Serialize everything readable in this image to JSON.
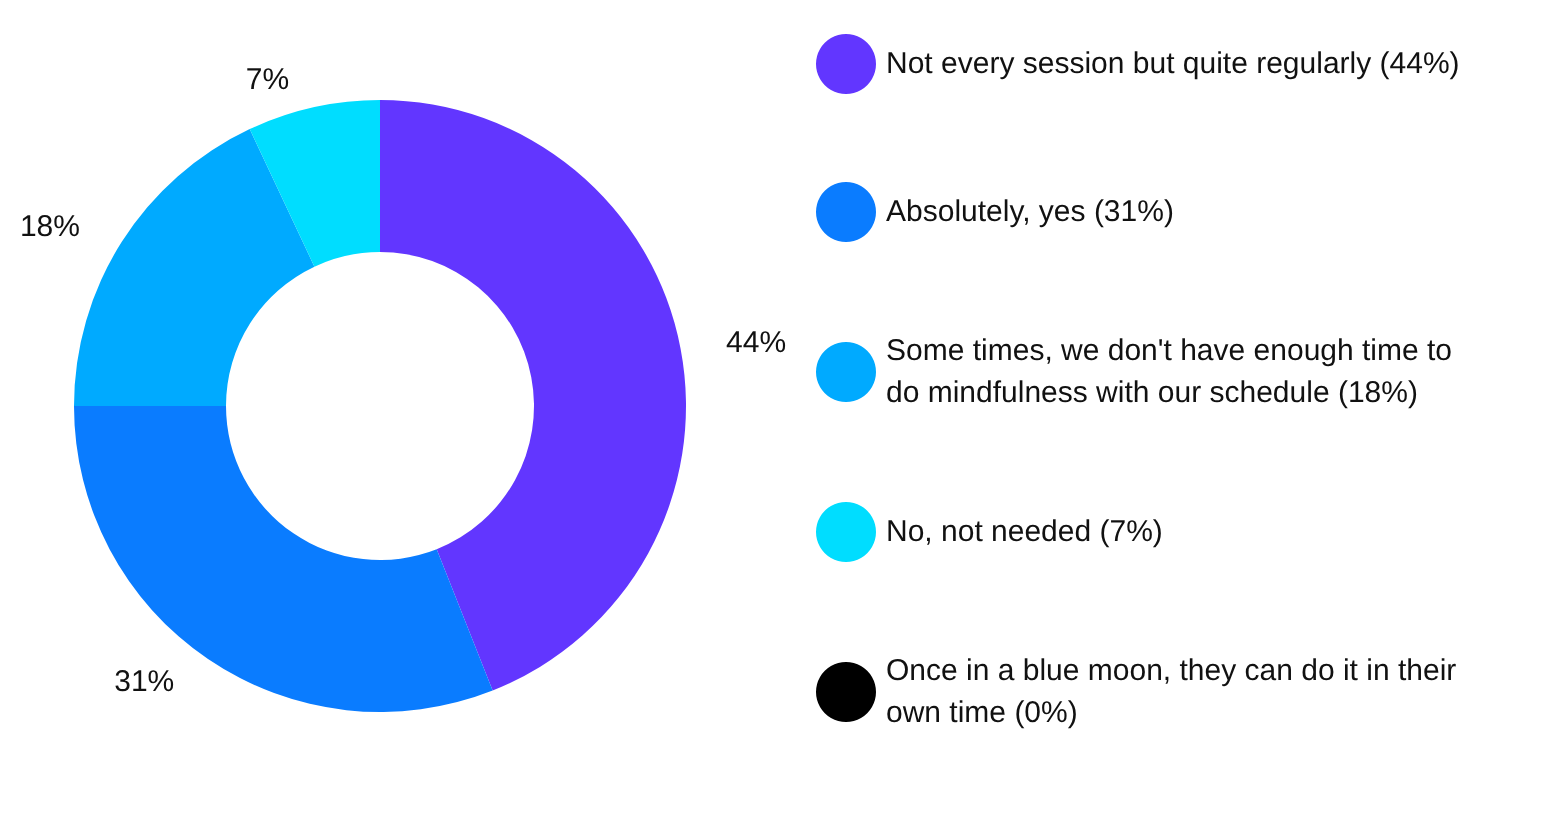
{
  "chart_data": {
    "type": "donut",
    "categories": [
      "Not every session but quite regularly (44%)",
      "Absolutely, yes (31%)",
      "Some times, we don't have enough time to do mindfulness with our schedule (18%)",
      "No, not needed (7%)",
      "Once in a blue moon, they can do it in their own time (0%)"
    ],
    "values": [
      44,
      31,
      18,
      7,
      0
    ],
    "colors": [
      "#6236ff",
      "#0a7cff",
      "#00aaff",
      "#00ddff",
      "#000000"
    ],
    "value_labels": [
      "44%",
      "31%",
      "18%",
      "7%",
      null
    ],
    "legend": "right"
  }
}
